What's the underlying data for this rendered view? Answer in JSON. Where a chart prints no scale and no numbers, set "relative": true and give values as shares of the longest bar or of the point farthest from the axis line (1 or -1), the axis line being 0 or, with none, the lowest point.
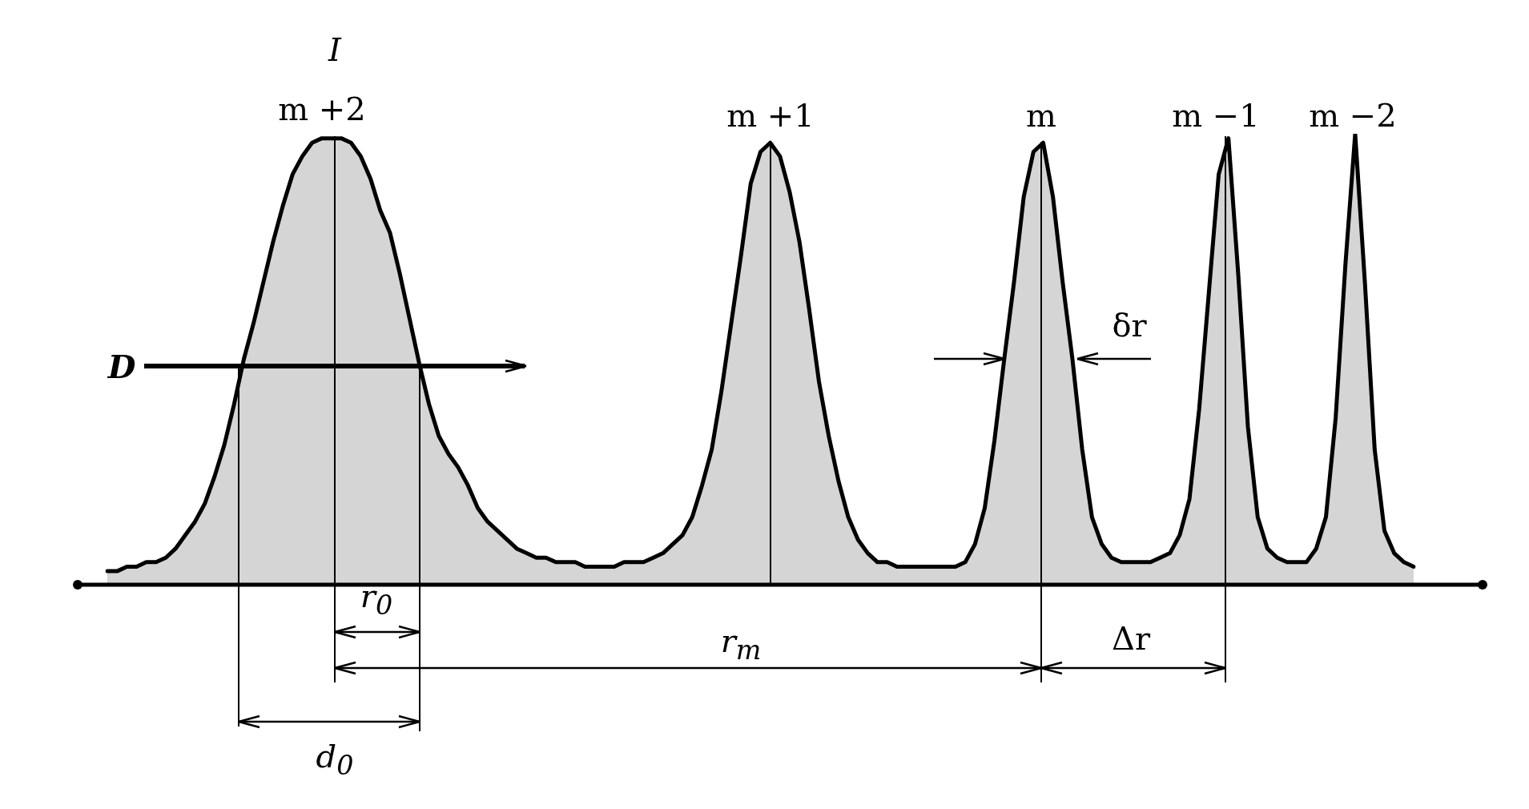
{
  "chart_data": {
    "type": "area",
    "relative": true,
    "marker": "none",
    "categories": [
      null,
      null,
      null,
      null,
      null,
      null,
      null,
      null,
      null,
      null,
      null,
      null,
      null,
      null,
      null,
      null,
      null,
      null,
      null,
      null,
      null,
      null,
      null,
      null,
      null,
      null,
      null,
      null,
      null,
      null,
      null,
      null,
      null,
      null,
      null,
      null,
      null,
      null,
      null,
      null,
      null,
      null,
      null,
      null,
      null,
      null,
      null,
      null,
      null,
      null,
      null,
      null,
      null,
      null,
      null,
      null,
      null,
      null,
      null,
      null,
      null,
      null,
      null,
      null,
      null,
      null,
      null,
      null,
      null,
      null,
      null,
      null,
      null,
      null,
      null,
      null,
      null,
      null,
      null,
      null,
      null,
      null,
      null,
      null,
      null,
      null,
      null,
      null,
      null,
      null,
      null,
      null,
      null,
      null,
      null,
      null,
      null,
      null,
      null,
      null,
      null,
      null,
      null,
      null,
      null,
      null,
      null,
      null,
      null,
      null,
      null,
      null,
      null,
      null,
      null,
      null,
      null,
      null,
      null,
      null,
      null,
      null,
      null,
      null,
      null,
      null,
      null,
      null,
      null,
      null,
      null,
      null,
      null,
      null,
      null
    ],
    "series": [
      {
        "color": "#000000",
        "values": [
          0.03,
          0.03,
          0.04,
          0.04,
          0.05,
          0.05,
          0.06,
          0.08,
          0.11,
          0.14,
          0.18,
          0.24,
          0.31,
          0.4,
          0.5,
          0.58,
          0.67,
          0.76,
          0.84,
          0.91,
          0.95,
          0.98,
          0.99,
          0.99,
          0.99,
          0.98,
          0.95,
          0.9,
          0.83,
          0.78,
          0.69,
          0.59,
          0.49,
          0.4,
          0.33,
          0.29,
          0.26,
          0.22,
          0.17,
          0.14,
          0.12,
          0.1,
          0.08,
          0.07,
          0.06,
          0.06,
          0.05,
          0.05,
          0.05,
          0.04,
          0.04,
          0.04,
          0.04,
          0.05,
          0.05,
          0.05,
          0.06,
          0.07,
          0.09,
          0.11,
          0.15,
          0.22,
          0.3,
          0.43,
          0.58,
          0.73,
          0.89,
          0.96,
          0.98,
          0.95,
          0.87,
          0.76,
          0.61,
          0.45,
          0.33,
          0.23,
          0.15,
          0.1,
          0.07,
          0.05,
          0.05,
          0.04,
          0.04,
          0.04,
          0.04,
          0.04,
          0.04,
          0.04,
          0.05,
          0.09,
          0.17,
          0.32,
          0.5,
          0.67,
          0.86,
          0.96,
          0.98,
          0.86,
          0.67,
          0.5,
          0.3,
          0.15,
          0.09,
          0.06,
          0.05,
          0.05,
          0.05,
          0.05,
          0.06,
          0.07,
          0.11,
          0.19,
          0.39,
          0.65,
          0.91,
          0.99,
          0.69,
          0.35,
          0.15,
          0.08,
          0.06,
          0.05,
          0.05,
          0.05,
          0.08,
          0.15,
          0.37,
          0.71,
          1,
          0.67,
          0.3,
          0.12,
          0.07,
          0.05,
          0.04
        ]
      }
    ],
    "annotations": [
      "I",
      "m +2",
      "m +1",
      "m",
      "m −1",
      "m −2",
      "D",
      "δr",
      "r$_{0}$",
      "r$_{m}$",
      "Δr",
      "d$_{0}$"
    ]
  }
}
